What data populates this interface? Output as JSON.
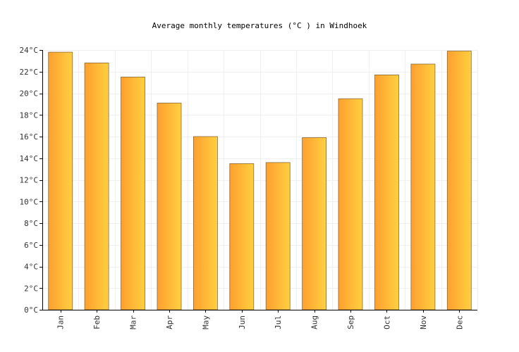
{
  "chart_data": {
    "type": "bar",
    "title": "Average monthly temperatures (°C ) in Windhoek",
    "xlabel": "",
    "ylabel": "",
    "categories": [
      "Jan",
      "Feb",
      "Mar",
      "Apr",
      "May",
      "Jun",
      "Jul",
      "Aug",
      "Sep",
      "Oct",
      "Nov",
      "Dec"
    ],
    "values": [
      23.8,
      22.8,
      21.5,
      19.1,
      16.0,
      13.5,
      13.6,
      15.9,
      19.5,
      21.7,
      22.7,
      23.9
    ],
    "ylim": [
      0,
      24
    ],
    "yticks": [
      0,
      2,
      4,
      6,
      8,
      10,
      12,
      14,
      16,
      18,
      20,
      22,
      24
    ],
    "ytick_suffix": "°C",
    "grid": true,
    "legend": "none",
    "colors": {
      "bar_start": "#ff9f2f",
      "bar_end": "#ffd040",
      "bar_stroke": "#8a6a3a",
      "grid": "#f0f0f0",
      "axis": "#000000"
    }
  }
}
